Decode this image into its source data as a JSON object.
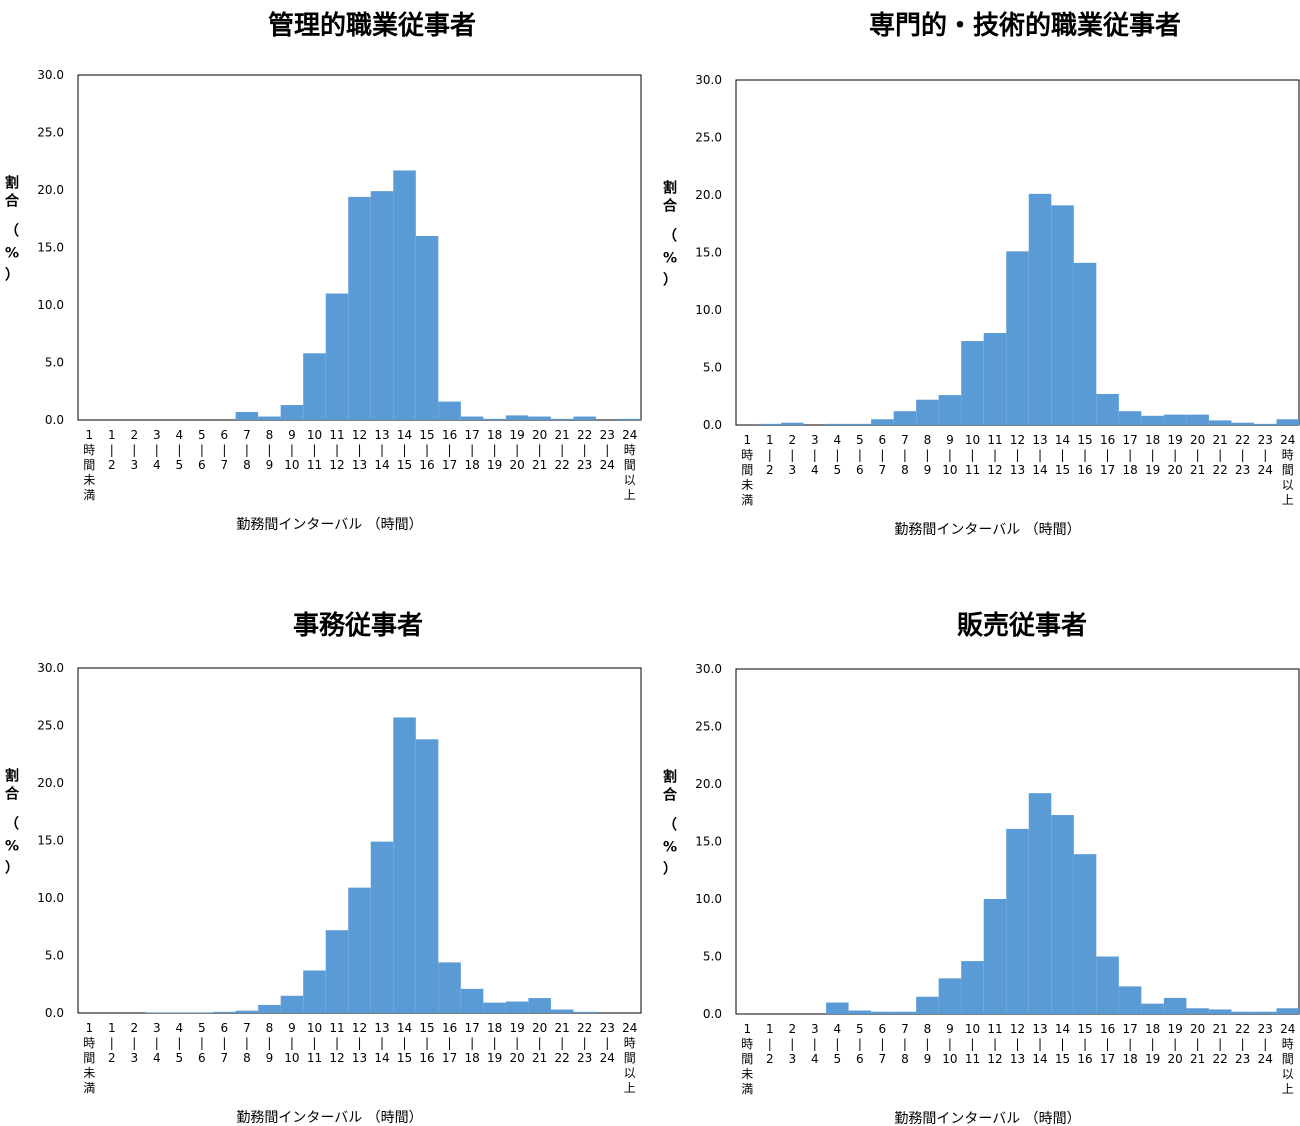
{
  "categories": [
    [
      "1",
      "時",
      "間",
      "未",
      "満"
    ],
    [
      "1",
      "|",
      "2"
    ],
    [
      "2",
      "|",
      "3"
    ],
    [
      "3",
      "|",
      "4"
    ],
    [
      "4",
      "|",
      "5"
    ],
    [
      "5",
      "|",
      "6"
    ],
    [
      "6",
      "|",
      "7"
    ],
    [
      "7",
      "|",
      "8"
    ],
    [
      "8",
      "|",
      "9"
    ],
    [
      "9",
      "|",
      "10"
    ],
    [
      "10",
      "|",
      "11"
    ],
    [
      "11",
      "|",
      "12"
    ],
    [
      "12",
      "|",
      "13"
    ],
    [
      "13",
      "|",
      "14"
    ],
    [
      "14",
      "|",
      "15"
    ],
    [
      "15",
      "|",
      "16"
    ],
    [
      "16",
      "|",
      "17"
    ],
    [
      "17",
      "|",
      "18"
    ],
    [
      "18",
      "|",
      "19"
    ],
    [
      "19",
      "|",
      "20"
    ],
    [
      "20",
      "|",
      "21"
    ],
    [
      "21",
      "|",
      "22"
    ],
    [
      "22",
      "|",
      "23"
    ],
    [
      "23",
      "|",
      "24"
    ],
    [
      "24",
      "時",
      "間",
      "以",
      "上"
    ]
  ],
  "colors": {
    "bar": "#5b9bd5",
    "axis": "#000000"
  },
  "chart_data": [
    {
      "type": "bar",
      "title": "管理的職業従事者",
      "xlabel": "勤務間インターバル （時間）",
      "ylabel": [
        "割",
        "合",
        "（",
        "%",
        "）"
      ],
      "ylim": [
        0,
        30
      ],
      "yticks": [
        "0.0",
        "5.0",
        "10.0",
        "15.0",
        "20.0",
        "25.0",
        "30.0"
      ],
      "values": [
        0.0,
        0.0,
        0.0,
        0.0,
        0.0,
        0.0,
        0.0,
        0.7,
        0.3,
        1.3,
        5.8,
        11.0,
        19.4,
        19.9,
        21.7,
        16.0,
        1.6,
        0.3,
        0.1,
        0.4,
        0.3,
        0.1,
        0.3,
        0.0,
        0.1
      ]
    },
    {
      "type": "bar",
      "title": "専門的・技術的職業従事者",
      "xlabel": "勤務間インターバル （時間）",
      "ylabel": [
        "割",
        "合",
        "（",
        "%",
        "）"
      ],
      "ylim": [
        0,
        30
      ],
      "yticks": [
        "0.0",
        "5.0",
        "10.0",
        "15.0",
        "20.0",
        "25.0",
        "30.0"
      ],
      "values": [
        0.0,
        0.1,
        0.2,
        0.0,
        0.1,
        0.1,
        0.5,
        1.2,
        2.2,
        2.6,
        7.3,
        8.0,
        15.1,
        20.1,
        19.1,
        14.1,
        2.7,
        1.2,
        0.8,
        0.9,
        0.9,
        0.4,
        0.2,
        0.1,
        0.5
      ]
    },
    {
      "type": "bar",
      "title": "事務従事者",
      "xlabel": "勤務間インターバル （時間）",
      "ylabel": [
        "割",
        "合",
        "（",
        "%",
        "）"
      ],
      "ylim": [
        0,
        30
      ],
      "yticks": [
        "0.0",
        "5.0",
        "10.0",
        "15.0",
        "20.0",
        "25.0",
        "30.0"
      ],
      "values": [
        0.0,
        0.0,
        0.0,
        0.05,
        0.05,
        0.05,
        0.1,
        0.2,
        0.7,
        1.5,
        3.7,
        7.2,
        10.9,
        14.9,
        25.7,
        23.8,
        4.4,
        2.1,
        0.9,
        1.0,
        1.3,
        0.3,
        0.1,
        0.0,
        0.0
      ]
    },
    {
      "type": "bar",
      "title": "販売従事者",
      "xlabel": "勤務間インターバル （時間）",
      "ylabel": [
        "割",
        "合",
        "（",
        "%",
        "）"
      ],
      "ylim": [
        0,
        30
      ],
      "yticks": [
        "0.0",
        "5.0",
        "10.0",
        "15.0",
        "20.0",
        "25.0",
        "30.0"
      ],
      "values": [
        0.0,
        0.0,
        0.0,
        0.0,
        1.0,
        0.3,
        0.2,
        0.2,
        1.5,
        3.1,
        4.6,
        10.0,
        16.1,
        19.2,
        17.3,
        13.9,
        5.0,
        2.4,
        0.9,
        1.4,
        0.5,
        0.4,
        0.2,
        0.2,
        0.5
      ]
    }
  ]
}
